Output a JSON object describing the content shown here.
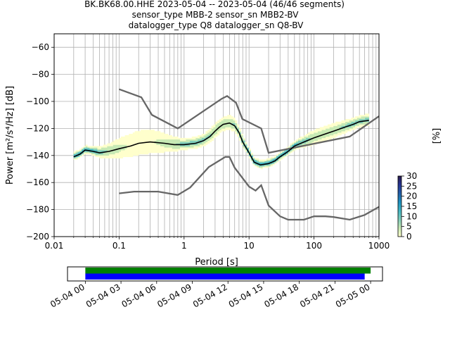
{
  "title": {
    "line1": "BK.BK68.00.HHE   2023-05-04 -- 2023-05-04  (46/46 segments)",
    "line2": "sensor_type MBB-2 sensor_sn MBB2-BV",
    "line3": "datalogger_type Q8 datalogger_sn Q8-BV"
  },
  "chart_data": [
    {
      "type": "heatmap",
      "title": "",
      "xlabel": "Period [s]",
      "ylabel": "Power [m²/s⁴/Hz] [dB]",
      "xscale": "log",
      "xlim": [
        0.01,
        1000
      ],
      "ylim": [
        -200,
        -50
      ],
      "xticks": [
        0.01,
        0.1,
        1,
        10,
        100,
        1000
      ],
      "xtick_labels": [
        "0.01",
        "0.1",
        "1",
        "10",
        "100",
        "1000"
      ],
      "yticks": [
        -200,
        -180,
        -160,
        -140,
        -120,
        -100,
        -80,
        -60
      ],
      "ytick_labels": [
        "−200",
        "−180",
        "−160",
        "−140",
        "−120",
        "−100",
        "−80",
        "−60"
      ],
      "grid": true,
      "colorbar": {
        "label": "[%]",
        "range": [
          0,
          30
        ],
        "ticks": [
          0,
          5,
          10,
          15,
          20,
          25,
          30
        ],
        "tick_labels": [
          "0",
          "5",
          "10",
          "15",
          "20",
          "25",
          "30"
        ],
        "colormap": [
          "#ffffcc",
          "#c7e9b4",
          "#7fcdbb",
          "#41b6c4",
          "#1d91c0",
          "#225ea8",
          "#253494",
          "#2a1a4a"
        ]
      },
      "mode_curve": {
        "color": "#000000",
        "x": [
          0.02,
          0.025,
          0.03,
          0.04,
          0.05,
          0.07,
          0.1,
          0.15,
          0.2,
          0.3,
          0.5,
          0.7,
          1,
          1.5,
          2,
          2.5,
          3,
          3.5,
          4,
          5,
          6,
          7,
          8,
          10,
          12,
          15,
          20,
          25,
          30,
          40,
          50,
          70,
          100,
          150,
          200,
          300,
          400,
          500,
          700
        ],
        "y": [
          -141,
          -139,
          -136,
          -137,
          -138,
          -137,
          -135,
          -133,
          -131,
          -130,
          -131,
          -132,
          -132,
          -131,
          -129,
          -126,
          -122,
          -119,
          -117,
          -116,
          -118,
          -123,
          -130,
          -138,
          -145,
          -147,
          -146,
          -144,
          -141,
          -137,
          -133,
          -130,
          -127,
          -124,
          -122,
          -119,
          -117,
          -115,
          -114
        ]
      },
      "noise_models": {
        "color": "#666666",
        "nhnm": {
          "x": [
            0.1,
            0.22,
            0.32,
            0.8,
            3.8,
            4.6,
            6.3,
            7.9,
            15.4,
            20,
            354.8,
            1000
          ],
          "y": [
            -91,
            -97,
            -110,
            -120,
            -98,
            -96,
            -101,
            -113,
            -120,
            -138,
            -126,
            -111
          ]
        },
        "nlnm": {
          "x": [
            0.1,
            0.17,
            0.4,
            0.8,
            1.24,
            2.4,
            4.3,
            5,
            6,
            10,
            12.6,
            15.4,
            20,
            30,
            40,
            50,
            70,
            100,
            150,
            200,
            354.8,
            600,
            1000
          ],
          "y": [
            -168,
            -166.7,
            -166.7,
            -169.2,
            -163.7,
            -148.6,
            -141.1,
            -141.1,
            -149,
            -163,
            -166,
            -162,
            -177,
            -185,
            -187.5,
            -187.5,
            -187.5,
            -185,
            -185,
            -185.5,
            -187.5,
            -184,
            -178
          ]
        }
      },
      "histogram_spread": [
        {
          "x": 0.04,
          "y": -137,
          "half_width": 2
        },
        {
          "x": 0.07,
          "y": -136,
          "half_width": 4
        },
        {
          "x": 0.1,
          "y": -134,
          "half_width": 6
        },
        {
          "x": 0.15,
          "y": -132,
          "half_width": 8
        },
        {
          "x": 0.25,
          "y": -130,
          "half_width": 9
        },
        {
          "x": 0.4,
          "y": -130,
          "half_width": 7
        },
        {
          "x": 0.7,
          "y": -131,
          "half_width": 4
        },
        {
          "x": 1,
          "y": -131,
          "half_width": 3
        },
        {
          "x": 2,
          "y": -128,
          "half_width": 3
        },
        {
          "x": 3,
          "y": -121,
          "half_width": 4
        },
        {
          "x": 4,
          "y": -116,
          "half_width": 4
        },
        {
          "x": 5,
          "y": -117,
          "half_width": 4
        },
        {
          "x": 7,
          "y": -124,
          "half_width": 3
        },
        {
          "x": 10,
          "y": -138,
          "half_width": 2
        },
        {
          "x": 50,
          "y": -133,
          "half_width": 2
        },
        {
          "x": 100,
          "y": -126,
          "half_width": 4
        },
        {
          "x": 200,
          "y": -121,
          "half_width": 4
        },
        {
          "x": 400,
          "y": -116,
          "half_width": 3
        },
        {
          "x": 700,
          "y": -114,
          "half_width": 3
        }
      ]
    },
    {
      "type": "timeline",
      "xlim": [
        "2023-05-03 22:30",
        "2023-05-05 01:00"
      ],
      "xticks": [
        "05-04 00",
        "05-04 03",
        "05-04 06",
        "05-04 09",
        "05-04 12",
        "05-04 15",
        "05-04 18",
        "05-04 21",
        "05-05 00"
      ],
      "bars": [
        {
          "color": "#008000",
          "start": "2023-05-04 00:00",
          "end": "2023-05-05 00:00"
        },
        {
          "color": "#0000ff",
          "start": "2023-05-04 00:00",
          "end": "2023-05-04 23:30"
        }
      ]
    }
  ]
}
